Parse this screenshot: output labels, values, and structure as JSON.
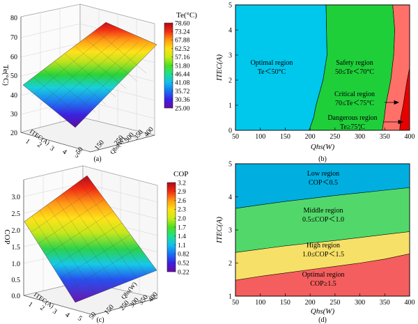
{
  "chart_data": [
    {
      "id": "a",
      "type": "surface3d",
      "caption": "(a)",
      "zlabel": "Te(°C)",
      "xlabel": "ITEC(A)",
      "ylabel": "Qhs(W)",
      "z_ticks": [
        "20",
        "30",
        "40",
        "50",
        "60",
        "70",
        "80"
      ],
      "x_ticks": [
        "1",
        "2",
        "3",
        "4",
        "5"
      ],
      "y_ticks": [
        "50",
        "100",
        "150",
        "200",
        "250",
        "300",
        "350",
        "400"
      ],
      "zlim": [
        20,
        80
      ],
      "colorbar": {
        "title": "Te(°C)",
        "values": [
          "78.60",
          "73.24",
          "67.88",
          "62.52",
          "57.16",
          "51.80",
          "46.44",
          "41.08",
          "35.72",
          "30.36",
          "25.00"
        ]
      }
    },
    {
      "id": "b",
      "type": "region",
      "caption": "(b)",
      "xlabel": "Qhs(W)",
      "ylabel": "ITEC(A)",
      "xlim": [
        50,
        400
      ],
      "ylim": [
        0,
        5
      ],
      "x_ticks": [
        "50",
        "100",
        "150",
        "200",
        "250",
        "300",
        "350",
        "400"
      ],
      "y_ticks": [
        "0",
        "1",
        "2",
        "3",
        "4",
        "5"
      ],
      "regions": [
        {
          "name": "Optimal region",
          "condition": "Te＜50°C",
          "color": "#00c8ec"
        },
        {
          "name": "Safety region",
          "condition": "50≤Te＜70°C",
          "color": "#1fcf3a"
        },
        {
          "name": "Critical region",
          "condition": "70≤Te＜75°C",
          "color": "#ff7068"
        },
        {
          "name": "Dangerous region",
          "condition": "Te≥75°C",
          "color": "#e60000"
        }
      ],
      "boundaries": {
        "te50": [
          [
            5,
            232
          ],
          [
            3,
            234
          ],
          [
            2,
            226
          ],
          [
            1,
            212
          ],
          [
            0.5,
            207
          ],
          [
            0,
            198
          ]
        ],
        "te70": [
          [
            5,
            366
          ],
          [
            4,
            370
          ],
          [
            3,
            368
          ],
          [
            2,
            362
          ],
          [
            1,
            352
          ],
          [
            0.5,
            349
          ],
          [
            0,
            345
          ]
        ],
        "te75": [
          [
            2.5,
            400
          ],
          [
            2,
            395
          ],
          [
            1,
            387
          ],
          [
            0.5,
            382
          ],
          [
            0,
            380
          ]
        ]
      }
    },
    {
      "id": "c",
      "type": "surface3d",
      "caption": "(c)",
      "zlabel": "COP",
      "xlabel": "ITEC(A)",
      "ylabel": "Qhs(W)",
      "z_ticks": [
        "0.0",
        "0.5",
        "1.0",
        "1.5",
        "2.0",
        "2.5",
        "3.0"
      ],
      "x_ticks": [
        "1",
        "2",
        "3",
        "4",
        "5"
      ],
      "y_ticks": [
        "50",
        "100",
        "150",
        "200",
        "250",
        "300",
        "350",
        "400"
      ],
      "zlim": [
        0,
        3.2
      ],
      "colorbar": {
        "title": "COP",
        "values": [
          "3.2",
          "2.9",
          "2.6",
          "2.3",
          "2.0",
          "1.7",
          "1.4",
          "1.1",
          "0.82",
          "0.52",
          "0.22"
        ]
      }
    },
    {
      "id": "d",
      "type": "region",
      "caption": "(d)",
      "xlabel": "Qhs(W)",
      "ylabel": "ITEC(A)",
      "xlim": [
        50,
        400
      ],
      "ylim": [
        1,
        5
      ],
      "x_ticks": [
        "50",
        "100",
        "150",
        "200",
        "250",
        "300",
        "350",
        "400"
      ],
      "y_ticks": [
        "1",
        "2",
        "3",
        "4",
        "5"
      ],
      "regions": [
        {
          "name": "Low region",
          "condition": "COP＜0.5",
          "color": "#00afe0"
        },
        {
          "name": "Middle region",
          "condition": "0.5≤COP＜1.0",
          "color": "#52d86a"
        },
        {
          "name": "High region",
          "condition": "1.0≤COP＜1.5",
          "color": "#f7e067"
        },
        {
          "name": "Optimal region",
          "condition": "COP≥1.5",
          "color": "#f55e5e"
        }
      ],
      "boundaries": {
        "cop05": [
          [
            50,
            3.65
          ],
          [
            100,
            3.76
          ],
          [
            150,
            3.86
          ],
          [
            200,
            3.95
          ],
          [
            250,
            4.04
          ],
          [
            300,
            4.12
          ],
          [
            350,
            4.2
          ],
          [
            400,
            4.28
          ]
        ],
        "cop10": [
          [
            50,
            2.32
          ],
          [
            100,
            2.42
          ],
          [
            150,
            2.52
          ],
          [
            200,
            2.6
          ],
          [
            250,
            2.68
          ],
          [
            300,
            2.77
          ],
          [
            350,
            2.86
          ],
          [
            400,
            2.95
          ]
        ],
        "cop15": [
          [
            50,
            1.48
          ],
          [
            100,
            1.6
          ],
          [
            150,
            1.7
          ],
          [
            200,
            1.8
          ],
          [
            250,
            1.9
          ],
          [
            300,
            2.0
          ],
          [
            350,
            2.12
          ],
          [
            400,
            2.28
          ]
        ]
      }
    }
  ]
}
